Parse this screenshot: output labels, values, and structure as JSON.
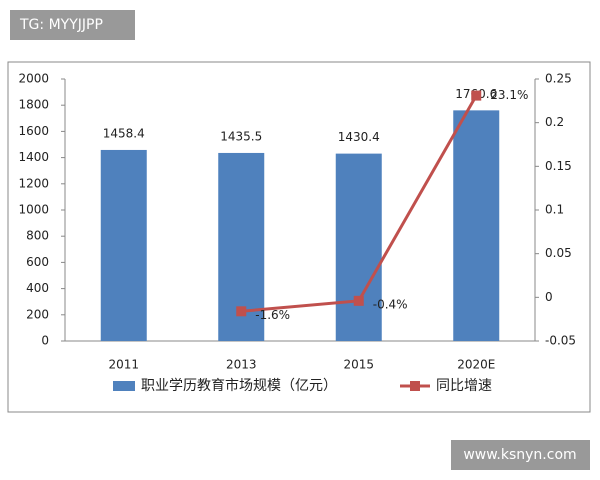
{
  "watermark_top": "TG: MYYJJPP",
  "watermark_bottom": "www.ksnyn.com",
  "chart_data": {
    "type": "bar",
    "categories": [
      "2011",
      "2013",
      "2015",
      "2020E"
    ],
    "series": [
      {
        "name": "职业学历教育市场规模（亿元）",
        "color": "#4f81bd",
        "type": "bar",
        "values": [
          1458.4,
          1435.5,
          1430.4,
          1760.6
        ]
      },
      {
        "name": "同比增速",
        "color": "#c0504d",
        "type": "line",
        "axis": "y2",
        "values": [
          null,
          -0.016,
          -0.004,
          0.231
        ],
        "value_labels": [
          null,
          "-1.6%",
          "-0.4%",
          "23.1%"
        ]
      }
    ],
    "ylim": [
      0,
      2000
    ],
    "yticks": [
      0,
      200,
      400,
      600,
      800,
      1000,
      1200,
      1400,
      1600,
      1800,
      2000
    ],
    "y2lim": [
      -0.05,
      0.25
    ],
    "y2ticks": [
      -0.05,
      0,
      0.05,
      0.1,
      0.15,
      0.2,
      0.25
    ],
    "grid": false,
    "legend": "bottom"
  }
}
